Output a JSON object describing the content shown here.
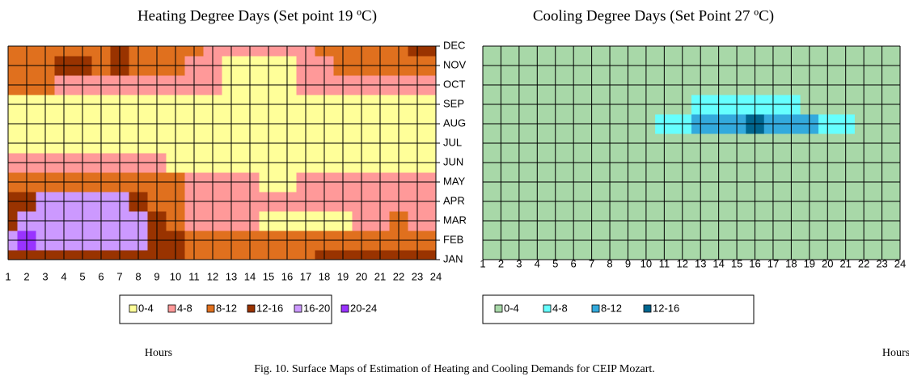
{
  "chart_data": [
    {
      "type": "heatmap",
      "title": "Heating Degree Days (Set point 19 ºC)",
      "xlabel": "Hours",
      "x": [
        1,
        2,
        3,
        4,
        5,
        6,
        7,
        8,
        9,
        10,
        11,
        12,
        13,
        14,
        15,
        16,
        17,
        18,
        19,
        20,
        21,
        22,
        23,
        24
      ],
      "categories": [
        "JAN",
        "FEB",
        "MAR",
        "APR",
        "MAY",
        "JUN",
        "JUL",
        "AUG",
        "SEP",
        "OCT",
        "NOV",
        "DEC"
      ],
      "bands": [
        {
          "name": "0-4",
          "color": "#ffff99"
        },
        {
          "name": "4-8",
          "color": "#ff9999"
        },
        {
          "name": "8-12",
          "color": "#e0701e"
        },
        {
          "name": "12-16",
          "color": "#993300"
        },
        {
          "name": "16-20",
          "color": "#cc99ff"
        },
        {
          "name": "20-24",
          "color": "#9933ff"
        }
      ],
      "z": [
        [
          13,
          13,
          13,
          13,
          13,
          13,
          13,
          13,
          13,
          13,
          11,
          10,
          10,
          10,
          10,
          10,
          10,
          12,
          12,
          12,
          13,
          13,
          13,
          13
        ],
        [
          18,
          22,
          18,
          18,
          18,
          18,
          18,
          18,
          14,
          13,
          11,
          10,
          10,
          10,
          10,
          10,
          10,
          10,
          10,
          10,
          10,
          10,
          10,
          10
        ],
        [
          14,
          18,
          18,
          18,
          18,
          18,
          17,
          18,
          14,
          10,
          7,
          6,
          6,
          6,
          3,
          3,
          3,
          3,
          3,
          6,
          6,
          8,
          6,
          6
        ],
        [
          14,
          14,
          17,
          17,
          17,
          17,
          16,
          14,
          10,
          10,
          6,
          6,
          6,
          6,
          6,
          6,
          6,
          6,
          6,
          6,
          6,
          6,
          6,
          6
        ],
        [
          10,
          10,
          10,
          10,
          10,
          10,
          10,
          10,
          10,
          8,
          6,
          6,
          6,
          6,
          3,
          3,
          6,
          6,
          6,
          6,
          6,
          6,
          6,
          6
        ],
        [
          6,
          6,
          6,
          6,
          6,
          6,
          6,
          6,
          6,
          3,
          3,
          3,
          3,
          3,
          3,
          3,
          3,
          3,
          3,
          3,
          3,
          3,
          3,
          3
        ],
        [
          2,
          2,
          2,
          2,
          2,
          2,
          2,
          2,
          2,
          2,
          2,
          2,
          2,
          2,
          2,
          2,
          2,
          2,
          2,
          2,
          2,
          2,
          2,
          2
        ],
        [
          2,
          2,
          2,
          2,
          2,
          2,
          2,
          2,
          2,
          2,
          2,
          2,
          2,
          2,
          2,
          2,
          2,
          2,
          2,
          2,
          2,
          2,
          2,
          2
        ],
        [
          3,
          3,
          3,
          3,
          3,
          3,
          3,
          3,
          3,
          3,
          3,
          3,
          3,
          3,
          3,
          3,
          3,
          3,
          3,
          3,
          3,
          3,
          3,
          3
        ],
        [
          10,
          10,
          10,
          6,
          6,
          6,
          6,
          6,
          6,
          6,
          6,
          6,
          3,
          3,
          3,
          3,
          6,
          6,
          6,
          6,
          6,
          6,
          6,
          6
        ],
        [
          10,
          10,
          10,
          14,
          14,
          10,
          14,
          10,
          10,
          10,
          6,
          6,
          2,
          2,
          2,
          2,
          6,
          6,
          10,
          10,
          10,
          10,
          10,
          10
        ],
        [
          10,
          10,
          10,
          10,
          10,
          10,
          14,
          10,
          10,
          10,
          10,
          6,
          6,
          6,
          6,
          6,
          6,
          10,
          10,
          10,
          10,
          10,
          14,
          14
        ]
      ]
    },
    {
      "type": "heatmap",
      "title": "Cooling Degree Days (Set Point 27 ºC)",
      "xlabel": "Hours",
      "x": [
        1,
        2,
        3,
        4,
        5,
        6,
        7,
        8,
        9,
        10,
        11,
        12,
        13,
        14,
        15,
        16,
        17,
        18,
        19,
        20,
        21,
        22,
        23,
        24
      ],
      "bands": [
        {
          "name": "0-4",
          "color": "#a8d8a8"
        },
        {
          "name": "4-8",
          "color": "#66ffff"
        },
        {
          "name": "8-12",
          "color": "#33aadd"
        },
        {
          "name": "12-16",
          "color": "#00668f"
        }
      ],
      "z": [
        [
          1,
          1,
          1,
          1,
          1,
          1,
          1,
          1,
          1,
          1,
          1,
          1,
          1,
          1,
          1,
          1,
          1,
          1,
          1,
          1,
          1,
          1,
          1,
          1
        ],
        [
          1,
          1,
          1,
          1,
          1,
          1,
          1,
          1,
          1,
          1,
          1,
          1,
          1,
          1,
          1,
          1,
          1,
          1,
          1,
          1,
          1,
          1,
          1,
          1
        ],
        [
          1,
          1,
          1,
          1,
          1,
          1,
          1,
          1,
          1,
          1,
          1,
          1,
          1,
          1,
          1,
          1,
          1,
          1,
          1,
          1,
          1,
          1,
          1,
          1
        ],
        [
          1,
          1,
          1,
          1,
          1,
          1,
          1,
          1,
          1,
          1,
          1,
          1,
          1,
          1,
          1,
          1,
          1,
          1,
          1,
          1,
          1,
          1,
          1,
          1
        ],
        [
          1,
          1,
          1,
          1,
          1,
          1,
          1,
          1,
          1,
          1,
          1,
          1,
          1,
          1,
          1,
          1,
          1,
          1,
          1,
          1,
          1,
          1,
          1,
          1
        ],
        [
          1,
          1,
          1,
          1,
          1,
          1,
          1,
          1,
          1,
          1,
          1,
          2,
          2,
          2,
          2,
          2,
          2,
          2,
          2,
          1,
          1,
          1,
          1,
          1
        ],
        [
          1,
          1,
          1,
          1,
          1,
          1,
          1,
          1,
          1,
          2,
          2,
          2,
          2,
          2,
          2,
          3,
          2,
          2,
          2,
          2,
          2,
          2,
          1,
          1
        ],
        [
          1,
          1,
          1,
          1,
          1,
          1,
          1,
          1,
          1,
          2,
          5,
          6,
          9,
          9,
          10,
          13,
          10,
          9,
          8,
          6,
          5,
          2,
          2,
          2
        ],
        [
          1,
          1,
          1,
          1,
          1,
          1,
          1,
          1,
          1,
          1,
          2,
          3,
          4,
          5,
          5,
          5,
          5,
          4,
          3,
          2,
          1,
          1,
          1,
          1
        ],
        [
          1,
          1,
          1,
          1,
          1,
          1,
          1,
          1,
          1,
          1,
          1,
          1,
          1,
          1,
          1,
          1,
          1,
          1,
          1,
          1,
          1,
          1,
          1,
          1
        ],
        [
          1,
          1,
          1,
          1,
          1,
          1,
          1,
          1,
          1,
          1,
          1,
          1,
          1,
          1,
          1,
          1,
          1,
          1,
          1,
          1,
          1,
          1,
          1,
          1
        ],
        [
          1,
          1,
          1,
          1,
          1,
          1,
          1,
          1,
          1,
          1,
          1,
          1,
          1,
          1,
          1,
          1,
          1,
          1,
          1,
          1,
          1,
          1,
          1,
          1
        ]
      ]
    }
  ],
  "caption": "Fig. 10. Surface Maps of Estimation of Heating and Cooling Demands for CEIP Mozart."
}
